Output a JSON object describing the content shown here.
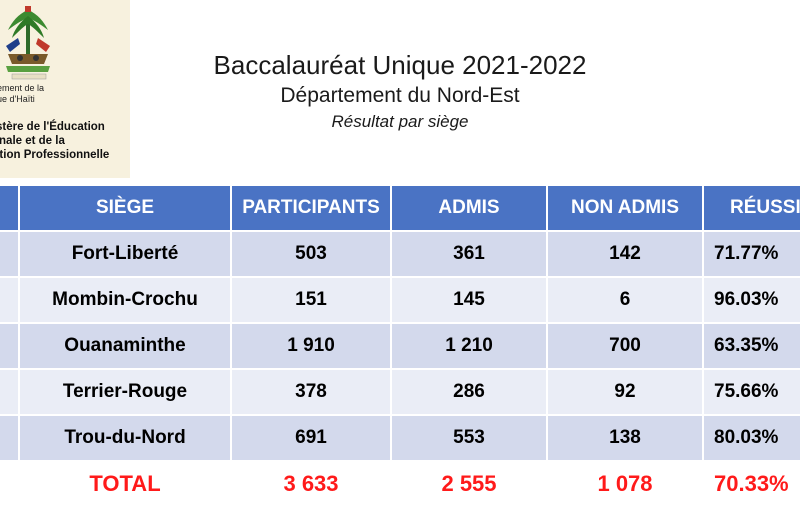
{
  "header": {
    "gov_line1": "nement de la",
    "gov_line2": "lique d'Haïti",
    "ministry_line1": "stère de l'Éducation",
    "ministry_line2": "onale et de la",
    "ministry_line3": "nation Professionnelle"
  },
  "title": {
    "main": "Baccalauréat Unique 2021-2022",
    "department": "Département du Nord-Est",
    "subtitle": "Résultat par siège"
  },
  "table": {
    "columns": [
      "SIÈGE",
      "PARTICIPANTS",
      "ADMIS",
      "NON ADMIS",
      "RÉUSSITE"
    ],
    "rows": [
      {
        "siege": "Fort-Liberté",
        "participants": "503",
        "admis": "361",
        "non_admis": "142",
        "reussite": "71.77%"
      },
      {
        "siege": "Mombin-Crochu",
        "participants": "151",
        "admis": "145",
        "non_admis": "6",
        "reussite": "96.03%"
      },
      {
        "siege": "Ouanaminthe",
        "participants": "1 910",
        "admis": "1 210",
        "non_admis": "700",
        "reussite": "63.35%"
      },
      {
        "siege": "Terrier-Rouge",
        "participants": "378",
        "admis": "286",
        "non_admis": "92",
        "reussite": "75.66%"
      },
      {
        "siege": "Trou-du-Nord",
        "participants": "691",
        "admis": "553",
        "non_admis": "138",
        "reussite": "80.03%"
      }
    ],
    "total": {
      "siege": "TOTAL",
      "participants": "3 633",
      "admis": "2 555",
      "non_admis": "1 078",
      "reussite": "70.33%"
    }
  },
  "colors": {
    "header_bg": "#4a73c4",
    "row_odd": "#d3d9ec",
    "row_even": "#eaedf6",
    "total_text": "#ff1a1a"
  }
}
